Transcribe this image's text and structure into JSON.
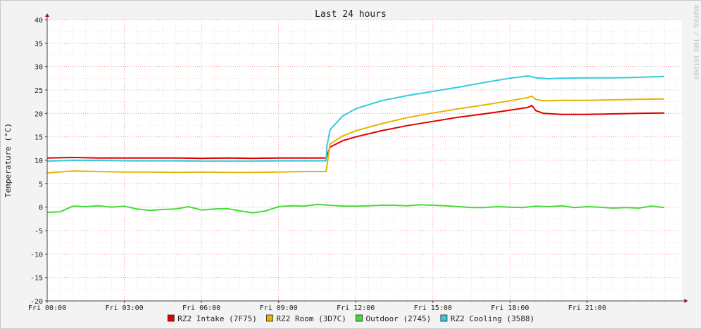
{
  "watermark": "RRDTOOL / TOBI OETIKER",
  "chart_data": {
    "type": "line",
    "title": "Last 24 hours",
    "xlabel": "",
    "ylabel": "Temperature (°C)",
    "xlim": [
      0,
      24.7
    ],
    "ylim": [
      -20,
      40
    ],
    "y_ticks": [
      -20,
      -15,
      -10,
      -5,
      0,
      5,
      10,
      15,
      20,
      25,
      30,
      35,
      40
    ],
    "x_ticks": [
      {
        "value": 0,
        "label": "Fri 00:00"
      },
      {
        "value": 3,
        "label": "Fri 03:00"
      },
      {
        "value": 6,
        "label": "Fri 06:00"
      },
      {
        "value": 9,
        "label": "Fri 09:00"
      },
      {
        "value": 12,
        "label": "Fri 12:00"
      },
      {
        "value": 15,
        "label": "Fri 15:00"
      },
      {
        "value": 18,
        "label": "Fri 18:00"
      },
      {
        "value": 21,
        "label": "Fri 21:00"
      }
    ],
    "grid": true,
    "legend_position": "bottom",
    "series": [
      {
        "name": "RZ2 Intake (7F75)",
        "color": "#e00000",
        "x": [
          0,
          1,
          2,
          3,
          4,
          5,
          6,
          7,
          8,
          9,
          10,
          10.85,
          10.9,
          11,
          11.5,
          12,
          13,
          14,
          15,
          16,
          17,
          18,
          18.7,
          18.85,
          19,
          19.3,
          20,
          21,
          22,
          23,
          24
        ],
        "y": [
          10.5,
          10.6,
          10.5,
          10.5,
          10.5,
          10.5,
          10.4,
          10.5,
          10.4,
          10.5,
          10.5,
          10.5,
          11.2,
          12.8,
          14.2,
          15.0,
          16.3,
          17.4,
          18.3,
          19.2,
          19.9,
          20.7,
          21.3,
          21.7,
          20.6,
          20.0,
          19.8,
          19.8,
          19.9,
          20.0,
          20.1
        ]
      },
      {
        "name": "RZ2 Room (3D7C)",
        "color": "#e5b400",
        "x": [
          0,
          1,
          2,
          3,
          4,
          5,
          6,
          7,
          8,
          9,
          10,
          10.85,
          10.9,
          11,
          11.5,
          12,
          13,
          14,
          15,
          16,
          17,
          18,
          18.7,
          18.85,
          19,
          19.3,
          20,
          21,
          22,
          23,
          24
        ],
        "y": [
          7.3,
          7.7,
          7.6,
          7.5,
          7.5,
          7.4,
          7.5,
          7.4,
          7.4,
          7.5,
          7.6,
          7.6,
          9.5,
          13.5,
          15.2,
          16.3,
          17.8,
          19.1,
          20.1,
          21.0,
          21.8,
          22.7,
          23.4,
          23.7,
          23.0,
          22.7,
          22.8,
          22.8,
          22.9,
          23.0,
          23.1
        ]
      },
      {
        "name": "Outdoor (2745)",
        "color": "#44dd33",
        "x": [
          0,
          0.5,
          1,
          1.5,
          2,
          2.5,
          3,
          3.5,
          4,
          4.5,
          5,
          5.5,
          6,
          6.5,
          7,
          7.5,
          8,
          8.5,
          9,
          9.5,
          10,
          10.5,
          11,
          11.5,
          12,
          12.5,
          13,
          13.5,
          14,
          14.5,
          15,
          15.5,
          16,
          16.5,
          17,
          17.5,
          18,
          18.5,
          19,
          19.5,
          20,
          20.5,
          21,
          21.5,
          22,
          22.5,
          23,
          23.5,
          24
        ],
        "y": [
          -1.1,
          -1.0,
          0.2,
          0.1,
          0.3,
          0.0,
          0.2,
          -0.4,
          -0.7,
          -0.5,
          -0.4,
          0.1,
          -0.6,
          -0.4,
          -0.3,
          -0.8,
          -1.2,
          -0.8,
          0.1,
          0.3,
          0.2,
          0.6,
          0.4,
          0.2,
          0.2,
          0.3,
          0.4,
          0.4,
          0.3,
          0.5,
          0.4,
          0.3,
          0.1,
          -0.1,
          -0.1,
          0.1,
          0.0,
          -0.1,
          0.2,
          0.1,
          0.3,
          -0.1,
          0.1,
          0.0,
          -0.2,
          -0.1,
          -0.2,
          0.2,
          -0.1
        ]
      },
      {
        "name": "RZ2 Cooling (3588)",
        "color": "#33ccdd",
        "x": [
          0,
          1,
          2,
          3,
          4,
          5,
          6,
          7,
          8,
          9,
          10,
          10.85,
          10.88,
          11,
          11.5,
          12,
          13,
          14,
          15,
          16,
          17,
          18,
          18.7,
          19,
          19.5,
          20,
          21,
          22,
          23,
          24
        ],
        "y": [
          9.8,
          10.0,
          10.0,
          9.9,
          9.9,
          9.9,
          9.8,
          9.8,
          9.8,
          9.9,
          9.9,
          9.9,
          13.0,
          16.5,
          19.5,
          21.0,
          22.7,
          23.8,
          24.7,
          25.6,
          26.6,
          27.5,
          28.0,
          27.6,
          27.4,
          27.5,
          27.6,
          27.6,
          27.7,
          27.9
        ]
      }
    ]
  }
}
